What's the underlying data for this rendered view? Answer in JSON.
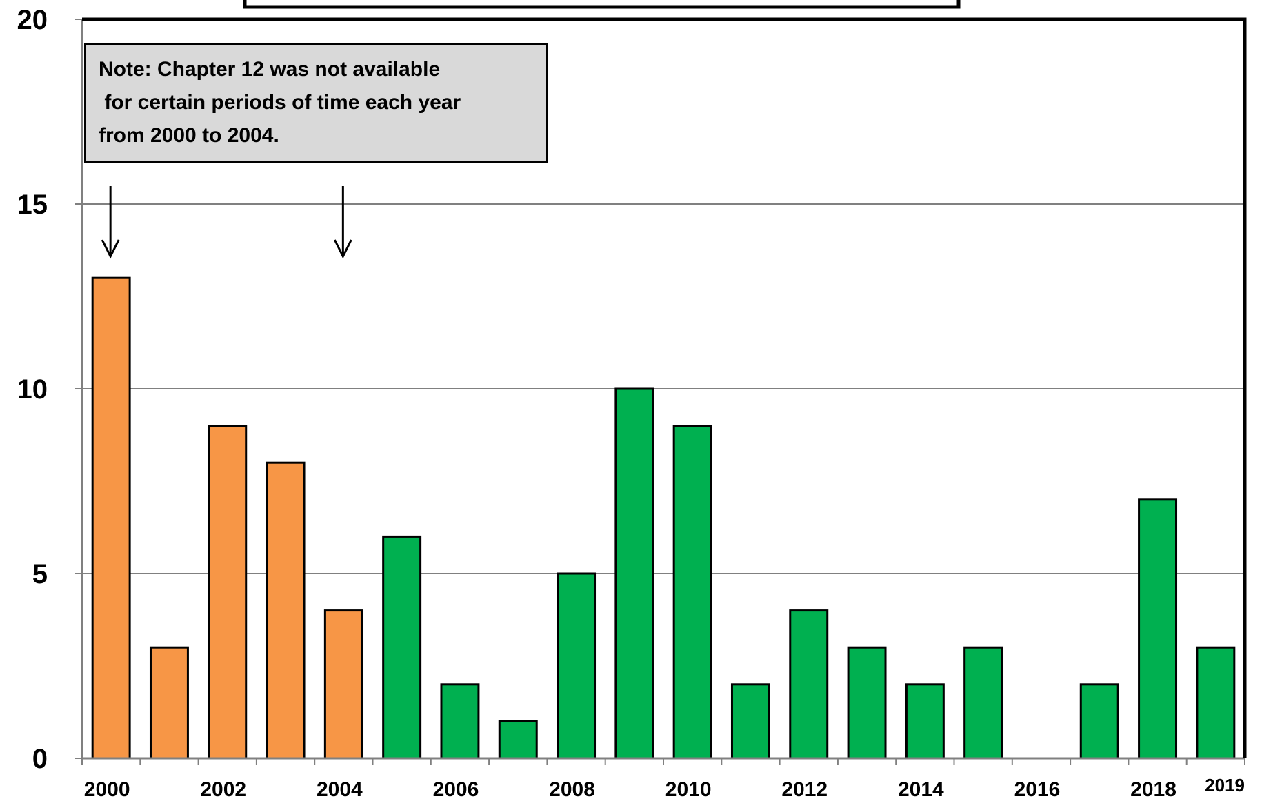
{
  "chart_data": {
    "type": "bar",
    "categories": [
      "2000",
      "2001",
      "2002",
      "2003",
      "2004",
      "2005",
      "2006",
      "2007",
      "2008",
      "2009",
      "2010",
      "2011",
      "2012",
      "2013",
      "2014",
      "2015",
      "2016",
      "2017",
      "2018",
      "2019"
    ],
    "values": [
      13,
      3,
      9,
      8,
      4,
      6,
      2,
      1,
      5,
      10,
      9,
      2,
      4,
      3,
      2,
      3,
      0,
      2,
      7,
      3
    ],
    "bar_colors": [
      "#F79646",
      "#F79646",
      "#F79646",
      "#F79646",
      "#F79646",
      "#00B050",
      "#00B050",
      "#00B050",
      "#00B050",
      "#00B050",
      "#00B050",
      "#00B050",
      "#00B050",
      "#00B050",
      "#00B050",
      "#00B050",
      "#00B050",
      "#00B050",
      "#00B050",
      "#00B050"
    ],
    "x_tick_labels": [
      "2000",
      "2002",
      "2004",
      "2006",
      "2008",
      "2010",
      "2012",
      "2014",
      "2016",
      "2018",
      "2019"
    ],
    "y_tick_labels": [
      "0",
      "5",
      "10",
      "15",
      "20"
    ],
    "ylim": [
      0,
      20
    ],
    "y_ticks": [
      0,
      5,
      10,
      15,
      20
    ],
    "grid": true,
    "title": "",
    "xlabel": "",
    "ylabel": "",
    "annotation": {
      "lines": [
        "Note: Chapter 12 was not available",
        " for certain periods of time each year",
        "from 2000 to 2004."
      ],
      "arrows_to_categories": [
        "2000",
        "2004"
      ]
    },
    "colors": {
      "orange": "#F79646",
      "green": "#00B050",
      "gridline": "#808080",
      "note_box": "#D9D9D9"
    }
  }
}
